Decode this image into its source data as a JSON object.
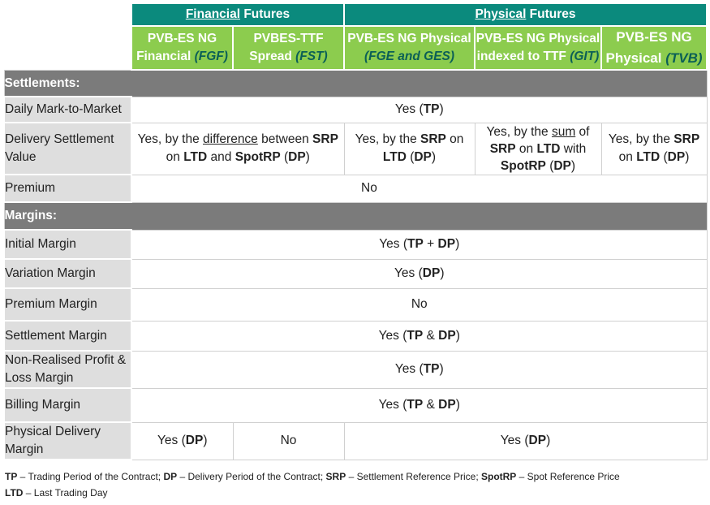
{
  "header": {
    "financial_group": {
      "underlined": "Financial",
      "rest": " Futures"
    },
    "physical_group": {
      "underlined": "Physical",
      "rest": " Futures"
    },
    "contracts": [
      {
        "line1": "PVB-ES NG",
        "line2_text": "Financial ",
        "code": "(FGF)"
      },
      {
        "line1": "PVBES-TTF",
        "line2_text": "Spread ",
        "code": "(FST)"
      },
      {
        "line1": "PVB-ES NG Physical",
        "line2_text": "",
        "code": "(FGE and GES)"
      },
      {
        "line1": "PVB-ES NG Physical",
        "line2_text": "indexed to TTF ",
        "code": "(GIT)"
      },
      {
        "line1": "PVB-ES NG",
        "line2_text": "Physical ",
        "code": "(TVB)"
      }
    ]
  },
  "sections": {
    "settlements": "Settlements:",
    "margins": "Margins:"
  },
  "rows": {
    "daily_mtm": {
      "label": "Daily Mark-to-Market",
      "value": {
        "pre": "Yes (",
        "bold": "TP",
        "post": ")"
      }
    },
    "delivery_settlement": {
      "label_line1": "Delivery Settlement",
      "label_line2": "Value",
      "financial": {
        "t1": "Yes, by the ",
        "u1": "difference",
        "t2": " between ",
        "b1": "SRP",
        "t3": "on ",
        "b2": "LTD",
        "t4": " and ",
        "b3": "SpotRP",
        "t5": " (",
        "b4": "DP",
        "t6": ")"
      },
      "physical": {
        "t1": "Yes, by the ",
        "b1": "SRP",
        "t2": " on",
        "b2": "LTD",
        "t3": " (",
        "b3": "DP",
        "t4": ")"
      },
      "indexed": {
        "t1": "Yes, by the ",
        "u1": "sum",
        "t2": " of",
        "b1": "SRP",
        "t3": " on ",
        "b2": "LTD",
        "t4": " with",
        "b3": "SpotRP",
        "t5": " (",
        "b4": "DP",
        "t6": ")"
      },
      "tvb": {
        "t1": "Yes, by the ",
        "b1": "SRP",
        "t2": "on ",
        "b2": "LTD",
        "t3": " (",
        "b3": "DP",
        "t4": ")"
      }
    },
    "premium": {
      "label": "Premium",
      "value": "No"
    },
    "initial_margin": {
      "label": "Initial Margin",
      "value": {
        "pre": "Yes (",
        "b1": "TP",
        "mid": " + ",
        "b2": "DP",
        "post": ")"
      }
    },
    "variation_margin": {
      "label": "Variation Margin",
      "value": {
        "pre": "Yes (",
        "bold": "DP",
        "post": ")"
      }
    },
    "premium_margin": {
      "label": "Premium Margin",
      "value": "No"
    },
    "settlement_margin": {
      "label": "Settlement Margin",
      "value": {
        "pre": "Yes (",
        "b1": "TP",
        "mid": " & ",
        "b2": "DP",
        "post": ")"
      }
    },
    "non_realised": {
      "label_line1": "Non-Realised Profit &",
      "label_line2": "Loss Margin",
      "value": {
        "pre": "Yes (",
        "bold": "TP",
        "post": ")"
      }
    },
    "billing_margin": {
      "label": "Billing Margin",
      "value": {
        "pre": "Yes (",
        "b1": "TP",
        "mid": " & ",
        "b2": "DP",
        "post": ")"
      }
    },
    "physical_delivery": {
      "label_line1": "Physical Delivery",
      "label_line2": "Margin",
      "fgf": {
        "pre": "Yes (",
        "bold": "DP",
        "post": ")"
      },
      "fst": "No",
      "physical": {
        "pre": "Yes (",
        "bold": "DP",
        "post": ")"
      }
    }
  },
  "legend": {
    "line1": [
      {
        "b": "TP",
        "t": " – Trading Period of the Contract;  "
      },
      {
        "b": "DP",
        "t": " – Delivery Period of the Contract; "
      },
      {
        "b": "SRP",
        "t": " – Settlement Reference Price; "
      },
      {
        "b": "SpotRP",
        "t": " – Spot Reference Price"
      }
    ],
    "line2": [
      {
        "b": "LTD",
        "t": " – Last Trading Day"
      }
    ]
  }
}
